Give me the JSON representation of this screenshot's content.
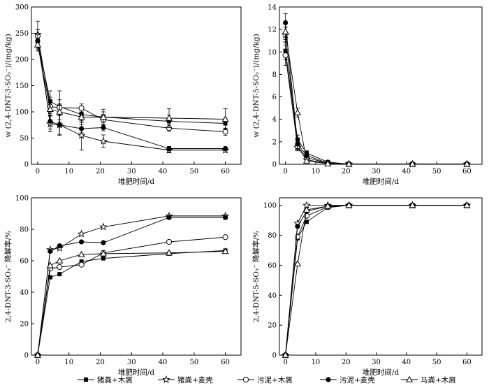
{
  "chart_data": [
    {
      "type": "line",
      "title": "",
      "xlabel": "堆肥时间/d",
      "ylabel": "w (2,4-DNT-3-SO₃⁻)/(mg/kg)",
      "xlim": [
        -2,
        65
      ],
      "ylim": [
        0,
        300
      ],
      "xticks": [
        0,
        10,
        20,
        30,
        40,
        50,
        60
      ],
      "yticks": [
        0,
        50,
        100,
        150,
        200,
        250,
        300
      ],
      "x": [
        0,
        4,
        7,
        14,
        21,
        42,
        60
      ],
      "series": [
        {
          "name": "猪粪+木屑",
          "marker": "square",
          "values": [
            235,
            120,
            110,
            95,
            90,
            82,
            78
          ],
          "errors": [
            15,
            20,
            30,
            15,
            15,
            12,
            10
          ]
        },
        {
          "name": "猪粪+麦壳",
          "marker": "star",
          "values": [
            248,
            77,
            75,
            55,
            44,
            27,
            27
          ],
          "errors": [
            25,
            15,
            20,
            28,
            12,
            5,
            4
          ]
        },
        {
          "name": "污泥+木屑",
          "marker": "circle-open",
          "values": [
            245,
            110,
            108,
            107,
            85,
            69,
            62
          ],
          "errors": [
            12,
            18,
            15,
            8,
            10,
            6,
            7
          ]
        },
        {
          "name": "污泥+麦壳",
          "marker": "circle-filled",
          "values": [
            235,
            82,
            75,
            68,
            70,
            30,
            30
          ],
          "errors": [
            12,
            15,
            18,
            8,
            6,
            4,
            3
          ]
        },
        {
          "name": "马粪+木屑",
          "marker": "triangle",
          "values": [
            228,
            105,
            100,
            90,
            90,
            88,
            86
          ],
          "errors": [
            12,
            12,
            15,
            10,
            10,
            18,
            20
          ]
        }
      ]
    },
    {
      "type": "line",
      "title": "",
      "xlabel": "堆肥时间/d",
      "ylabel": "w (2,4-DNT-5-SO₃⁻)/(mg/kg)",
      "xlim": [
        -2,
        65
      ],
      "ylim": [
        0,
        14
      ],
      "xticks": [
        0,
        10,
        20,
        30,
        40,
        50,
        60
      ],
      "yticks": [
        0,
        2,
        4,
        6,
        8,
        10,
        12,
        14
      ],
      "x": [
        0,
        4,
        7,
        14,
        21,
        42,
        60
      ],
      "series": [
        {
          "name": "猪粪+木屑",
          "marker": "square",
          "values": [
            10.1,
            2.2,
            1.0,
            0.2,
            0.02,
            0.02,
            0.02
          ],
          "errors": [
            0.8,
            0.4,
            0.2,
            0.1,
            0,
            0,
            0
          ]
        },
        {
          "name": "猪粪+麦壳",
          "marker": "star",
          "values": [
            11.5,
            1.5,
            0.4,
            0.1,
            0.02,
            0.02,
            0.02
          ],
          "errors": [
            0.7,
            0.3,
            0.1,
            0.05,
            0,
            0,
            0
          ]
        },
        {
          "name": "污泥+木屑",
          "marker": "circle-open",
          "values": [
            9.7,
            1.6,
            0.6,
            0.1,
            0.02,
            0.02,
            0.02
          ],
          "errors": [
            0.9,
            0.3,
            0.2,
            0.05,
            0,
            0,
            0
          ]
        },
        {
          "name": "污泥+麦壳",
          "marker": "circle-filled",
          "values": [
            12.6,
            1.8,
            0.8,
            0.1,
            0.02,
            0.02,
            0.02
          ],
          "errors": [
            0.8,
            0.4,
            0.2,
            0.05,
            0,
            0,
            0
          ]
        },
        {
          "name": "马粪+木屑",
          "marker": "triangle",
          "values": [
            11.8,
            4.6,
            0.3,
            0.05,
            0.02,
            0.02,
            0.02
          ],
          "errors": [
            0.7,
            0.4,
            0.1,
            0.05,
            0,
            0,
            0
          ]
        }
      ]
    },
    {
      "type": "line",
      "title": "",
      "xlabel": "堆肥时间/d",
      "ylabel": "2,4-DNT-3-SO₃⁻ 降解率/%",
      "xlim": [
        -2,
        65
      ],
      "ylim": [
        0,
        100
      ],
      "xticks": [
        0,
        10,
        20,
        30,
        40,
        50,
        60
      ],
      "yticks": [
        0,
        20,
        40,
        60,
        80,
        100
      ],
      "x": [
        0,
        4,
        7,
        14,
        21,
        42,
        60
      ],
      "series": [
        {
          "name": "猪粪+木屑",
          "marker": "square",
          "values": [
            0,
            49.5,
            51.5,
            59.5,
            61.5,
            64.5,
            66.5
          ]
        },
        {
          "name": "猪粪+麦壳",
          "marker": "star",
          "values": [
            0,
            67,
            68,
            77,
            81.5,
            88.5,
            88.5
          ]
        },
        {
          "name": "污泥+木屑",
          "marker": "circle-open",
          "values": [
            0,
            55,
            56,
            57.5,
            65,
            72,
            75
          ]
        },
        {
          "name": "污泥+麦壳",
          "marker": "circle-filled",
          "values": [
            0,
            66,
            69.5,
            72,
            71.5,
            87.5,
            87.5
          ]
        },
        {
          "name": "马粪+木屑",
          "marker": "triangle",
          "values": [
            0,
            57,
            60,
            64,
            64.5,
            65,
            66
          ]
        }
      ]
    },
    {
      "type": "line",
      "title": "",
      "xlabel": "堆肥时间/d",
      "ylabel": "2,4-DNT-5-SO₃⁻ 降解率/%",
      "xlim": [
        -2,
        65
      ],
      "ylim": [
        0,
        105
      ],
      "xticks": [
        0,
        10,
        20,
        30,
        40,
        50,
        60
      ],
      "yticks": [
        0,
        20,
        40,
        60,
        80,
        100
      ],
      "x": [
        0,
        4,
        7,
        14,
        21,
        42,
        60
      ],
      "series": [
        {
          "name": "猪粪+木屑",
          "marker": "square",
          "values": [
            0,
            78,
            89,
            98.5,
            100,
            100,
            100
          ]
        },
        {
          "name": "猪粪+麦壳",
          "marker": "star",
          "values": [
            0,
            88,
            100,
            100,
            100,
            100,
            100
          ]
        },
        {
          "name": "污泥+木屑",
          "marker": "circle-open",
          "values": [
            0,
            79,
            93,
            99,
            100,
            100,
            100
          ]
        },
        {
          "name": "污泥+麦壳",
          "marker": "circle-filled",
          "values": [
            0,
            86,
            96,
            99.5,
            100,
            100,
            100
          ]
        },
        {
          "name": "马粪+木屑",
          "marker": "triangle",
          "values": [
            0,
            61,
            97,
            99.5,
            100,
            100,
            100
          ]
        }
      ]
    }
  ],
  "legend": {
    "placement": "bottom",
    "items": [
      {
        "label": "猪粪+木屑",
        "marker": "square"
      },
      {
        "label": "猪粪+麦壳",
        "marker": "star"
      },
      {
        "label": "污泥+木屑",
        "marker": "circle-open"
      },
      {
        "label": "污泥+麦壳",
        "marker": "circle-filled"
      },
      {
        "label": "马粪+木屑",
        "marker": "triangle"
      }
    ]
  }
}
